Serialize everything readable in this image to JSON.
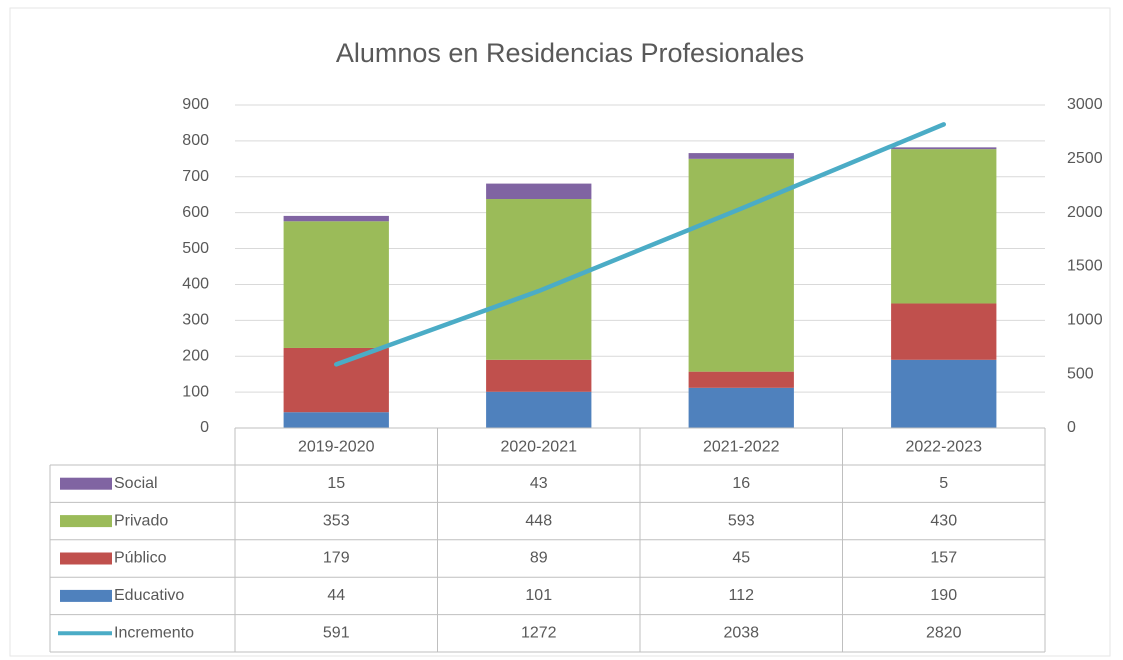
{
  "chart_data": {
    "type": "bar",
    "stacked": true,
    "title": "Alumnos en Residencias Profesionales",
    "categories": [
      "2019-2020",
      "2020-2021",
      "2021-2022",
      "2022-2023"
    ],
    "series": [
      {
        "name": "Social",
        "color": "#8064a2",
        "values": [
          15,
          43,
          16,
          5
        ]
      },
      {
        "name": "Privado",
        "color": "#9bbb59",
        "values": [
          353,
          448,
          593,
          430
        ]
      },
      {
        "name": "Público",
        "color": "#c0504d",
        "values": [
          179,
          89,
          45,
          157
        ]
      },
      {
        "name": "Educativo",
        "color": "#4f81bd",
        "values": [
          44,
          101,
          112,
          190
        ]
      },
      {
        "name": "Incremento",
        "color": "#4bacc6",
        "type": "line",
        "axis": "y2",
        "values": [
          591,
          1272,
          2038,
          2820
        ]
      }
    ],
    "ylim": [
      0,
      900
    ],
    "yticks": [
      0,
      100,
      200,
      300,
      400,
      500,
      600,
      700,
      800,
      900
    ],
    "y2lim": [
      0,
      3000
    ],
    "y2ticks": [
      0,
      500,
      1000,
      1500,
      2000,
      2500,
      3000
    ],
    "grid": true,
    "data_table": true
  }
}
